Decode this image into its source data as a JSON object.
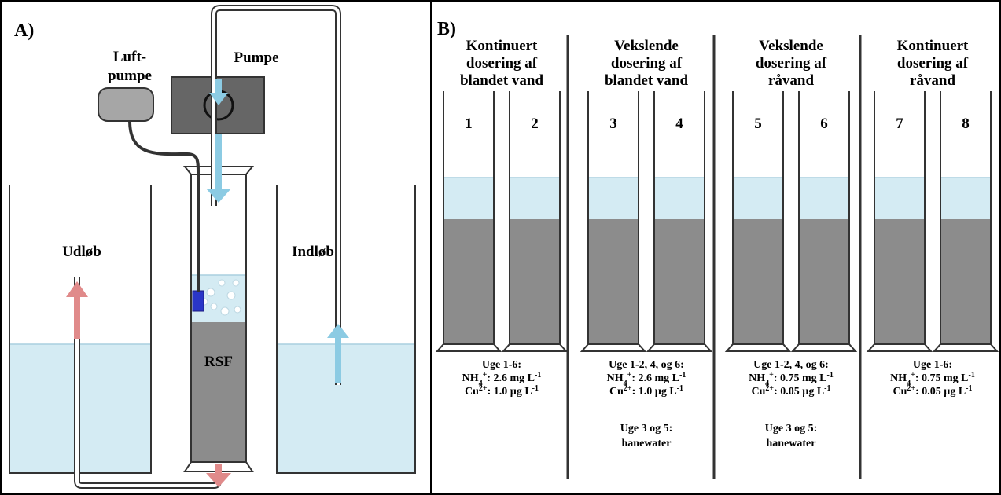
{
  "panel_a": {
    "label": "A)",
    "air_pump_label": [
      "Luft-",
      "pumpe"
    ],
    "pump_label": "Pumpe",
    "outlet_label": "Udløb",
    "inlet_label": "Indløb",
    "filter_label": "RSF"
  },
  "panel_b": {
    "label": "B)",
    "groups": [
      {
        "title_lines": [
          "Kontinuert",
          "dosering af",
          "blandet vand"
        ],
        "columns": [
          "1",
          "2"
        ],
        "dose_lines": [
          {
            "text": "Uge 1-6:"
          },
          {
            "parts": [
              {
                "t": "NH",
                "s": "n"
              },
              {
                "t": "4",
                "s": "sub"
              },
              {
                "t": "+",
                "s": "sup"
              },
              {
                "t": ": 2.6 mg L",
                "s": "n"
              },
              {
                "t": "-1",
                "s": "sup"
              }
            ]
          },
          {
            "parts": [
              {
                "t": "Cu",
                "s": "n"
              },
              {
                "t": "2+",
                "s": "sup"
              },
              {
                "t": ": 1.0 µg L",
                "s": "n"
              },
              {
                "t": "-1",
                "s": "sup"
              }
            ]
          }
        ],
        "extra_lines": []
      },
      {
        "title_lines": [
          "Vekslende",
          "dosering af",
          "blandet vand"
        ],
        "columns": [
          "3",
          "4"
        ],
        "dose_lines": [
          {
            "text": "Uge 1-2, 4, og 6:"
          },
          {
            "parts": [
              {
                "t": "NH",
                "s": "n"
              },
              {
                "t": "4",
                "s": "sub"
              },
              {
                "t": "+",
                "s": "sup"
              },
              {
                "t": ": 2.6 mg L",
                "s": "n"
              },
              {
                "t": "-1",
                "s": "sup"
              }
            ]
          },
          {
            "parts": [
              {
                "t": "Cu",
                "s": "n"
              },
              {
                "t": "2+",
                "s": "sup"
              },
              {
                "t": ": 1.0 µg L",
                "s": "n"
              },
              {
                "t": "-1",
                "s": "sup"
              }
            ]
          }
        ],
        "extra_lines": [
          "Uge 3 og 5:",
          "hanewater"
        ]
      },
      {
        "title_lines": [
          "Vekslende",
          "dosering af",
          "råvand"
        ],
        "columns": [
          "5",
          "6"
        ],
        "dose_lines": [
          {
            "text": "Uge 1-2, 4, og 6:"
          },
          {
            "parts": [
              {
                "t": "NH",
                "s": "n"
              },
              {
                "t": "4",
                "s": "sub"
              },
              {
                "t": "+",
                "s": "sup"
              },
              {
                "t": ": 0.75 mg L",
                "s": "n"
              },
              {
                "t": "-1",
                "s": "sup"
              }
            ]
          },
          {
            "parts": [
              {
                "t": "Cu",
                "s": "n"
              },
              {
                "t": "2+",
                "s": "sup"
              },
              {
                "t": ": 0.05 µg L",
                "s": "n"
              },
              {
                "t": "-1",
                "s": "sup"
              }
            ]
          }
        ],
        "extra_lines": [
          "Uge 3 og 5:",
          "hanewater"
        ]
      },
      {
        "title_lines": [
          "Kontinuert",
          "dosering af",
          "råvand"
        ],
        "columns": [
          "7",
          "8"
        ],
        "dose_lines": [
          {
            "text": "Uge 1-6:"
          },
          {
            "parts": [
              {
                "t": "NH",
                "s": "n"
              },
              {
                "t": "4",
                "s": "sub"
              },
              {
                "t": "+",
                "s": "sup"
              },
              {
                "t": ": 0.75 mg L",
                "s": "n"
              },
              {
                "t": "-1",
                "s": "sup"
              }
            ]
          },
          {
            "parts": [
              {
                "t": "Cu",
                "s": "n"
              },
              {
                "t": "2+",
                "s": "sup"
              },
              {
                "t": ": 0.05 µg L",
                "s": "n"
              },
              {
                "t": "-1",
                "s": "sup"
              }
            ]
          }
        ],
        "extra_lines": []
      }
    ]
  },
  "colors": {
    "water": "#d4ebf3",
    "water_line": "#a9cfdf",
    "filter_media": "#8c8c8c",
    "pump_body": "#666666",
    "air_pump": "#a6a6a6",
    "arrow_in": "#8ccbe3",
    "arrow_out": "#e08a8a",
    "diffuser": "#2a36c8",
    "outline": "#333333"
  }
}
